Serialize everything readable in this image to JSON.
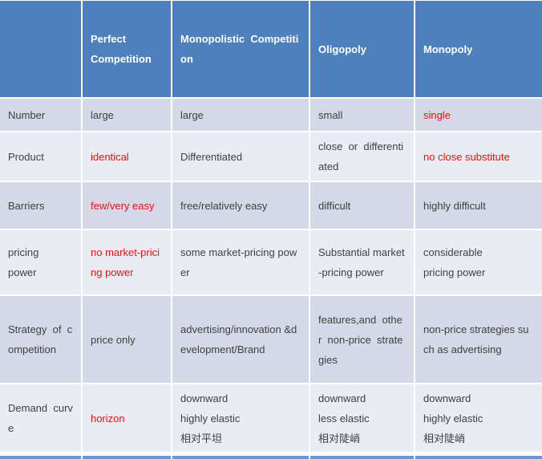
{
  "palette": {
    "header_bg": "#4d80bd",
    "row_dark_bg": "#d3d9e6",
    "row_light_bg": "#e9ecf3",
    "highlight_red": "#f70e12",
    "body_text": "#404040",
    "header_text": "#ffffff"
  },
  "table": {
    "header": [
      "",
      "Perfect\nCompetition",
      "Monopolistic  Competiti\non",
      "Oligopoly",
      "Monopoly"
    ],
    "rows": [
      {
        "label": "Number",
        "cells": [
          "large",
          "large",
          "small",
          "single"
        ]
      },
      {
        "label": "Product",
        "cells": [
          "identical",
          "Differentiated",
          "close  or  differenti\nated",
          "no close substitute"
        ]
      },
      {
        "label": "Barriers",
        "cells": [
          "few/very easy",
          "free/relatively easy",
          "difficult",
          "highly difficult"
        ]
      },
      {
        "label": "pricing\npower",
        "cells": [
          "no market-prici\nng power",
          "some market-pricing pow\ner",
          "Substantial market\n-pricing power",
          "considerable\npricing power"
        ]
      },
      {
        "label": "Strategy  of  c\nompetition",
        "cells": [
          "price only",
          "advertising/innovation &d\nevelopment/Brand",
          "features,and  othe\nr  non-price  strate\ngies",
          "non-price strategies su\nch as advertising"
        ]
      },
      {
        "label": "Demand  curv\ne",
        "cells": [
          "horizon",
          "downward\nhighly elastic\n相对平坦",
          "downward\nless elastic\n相对陡峭",
          "downward\nhighly elastic\n相对陡峭"
        ]
      }
    ]
  }
}
